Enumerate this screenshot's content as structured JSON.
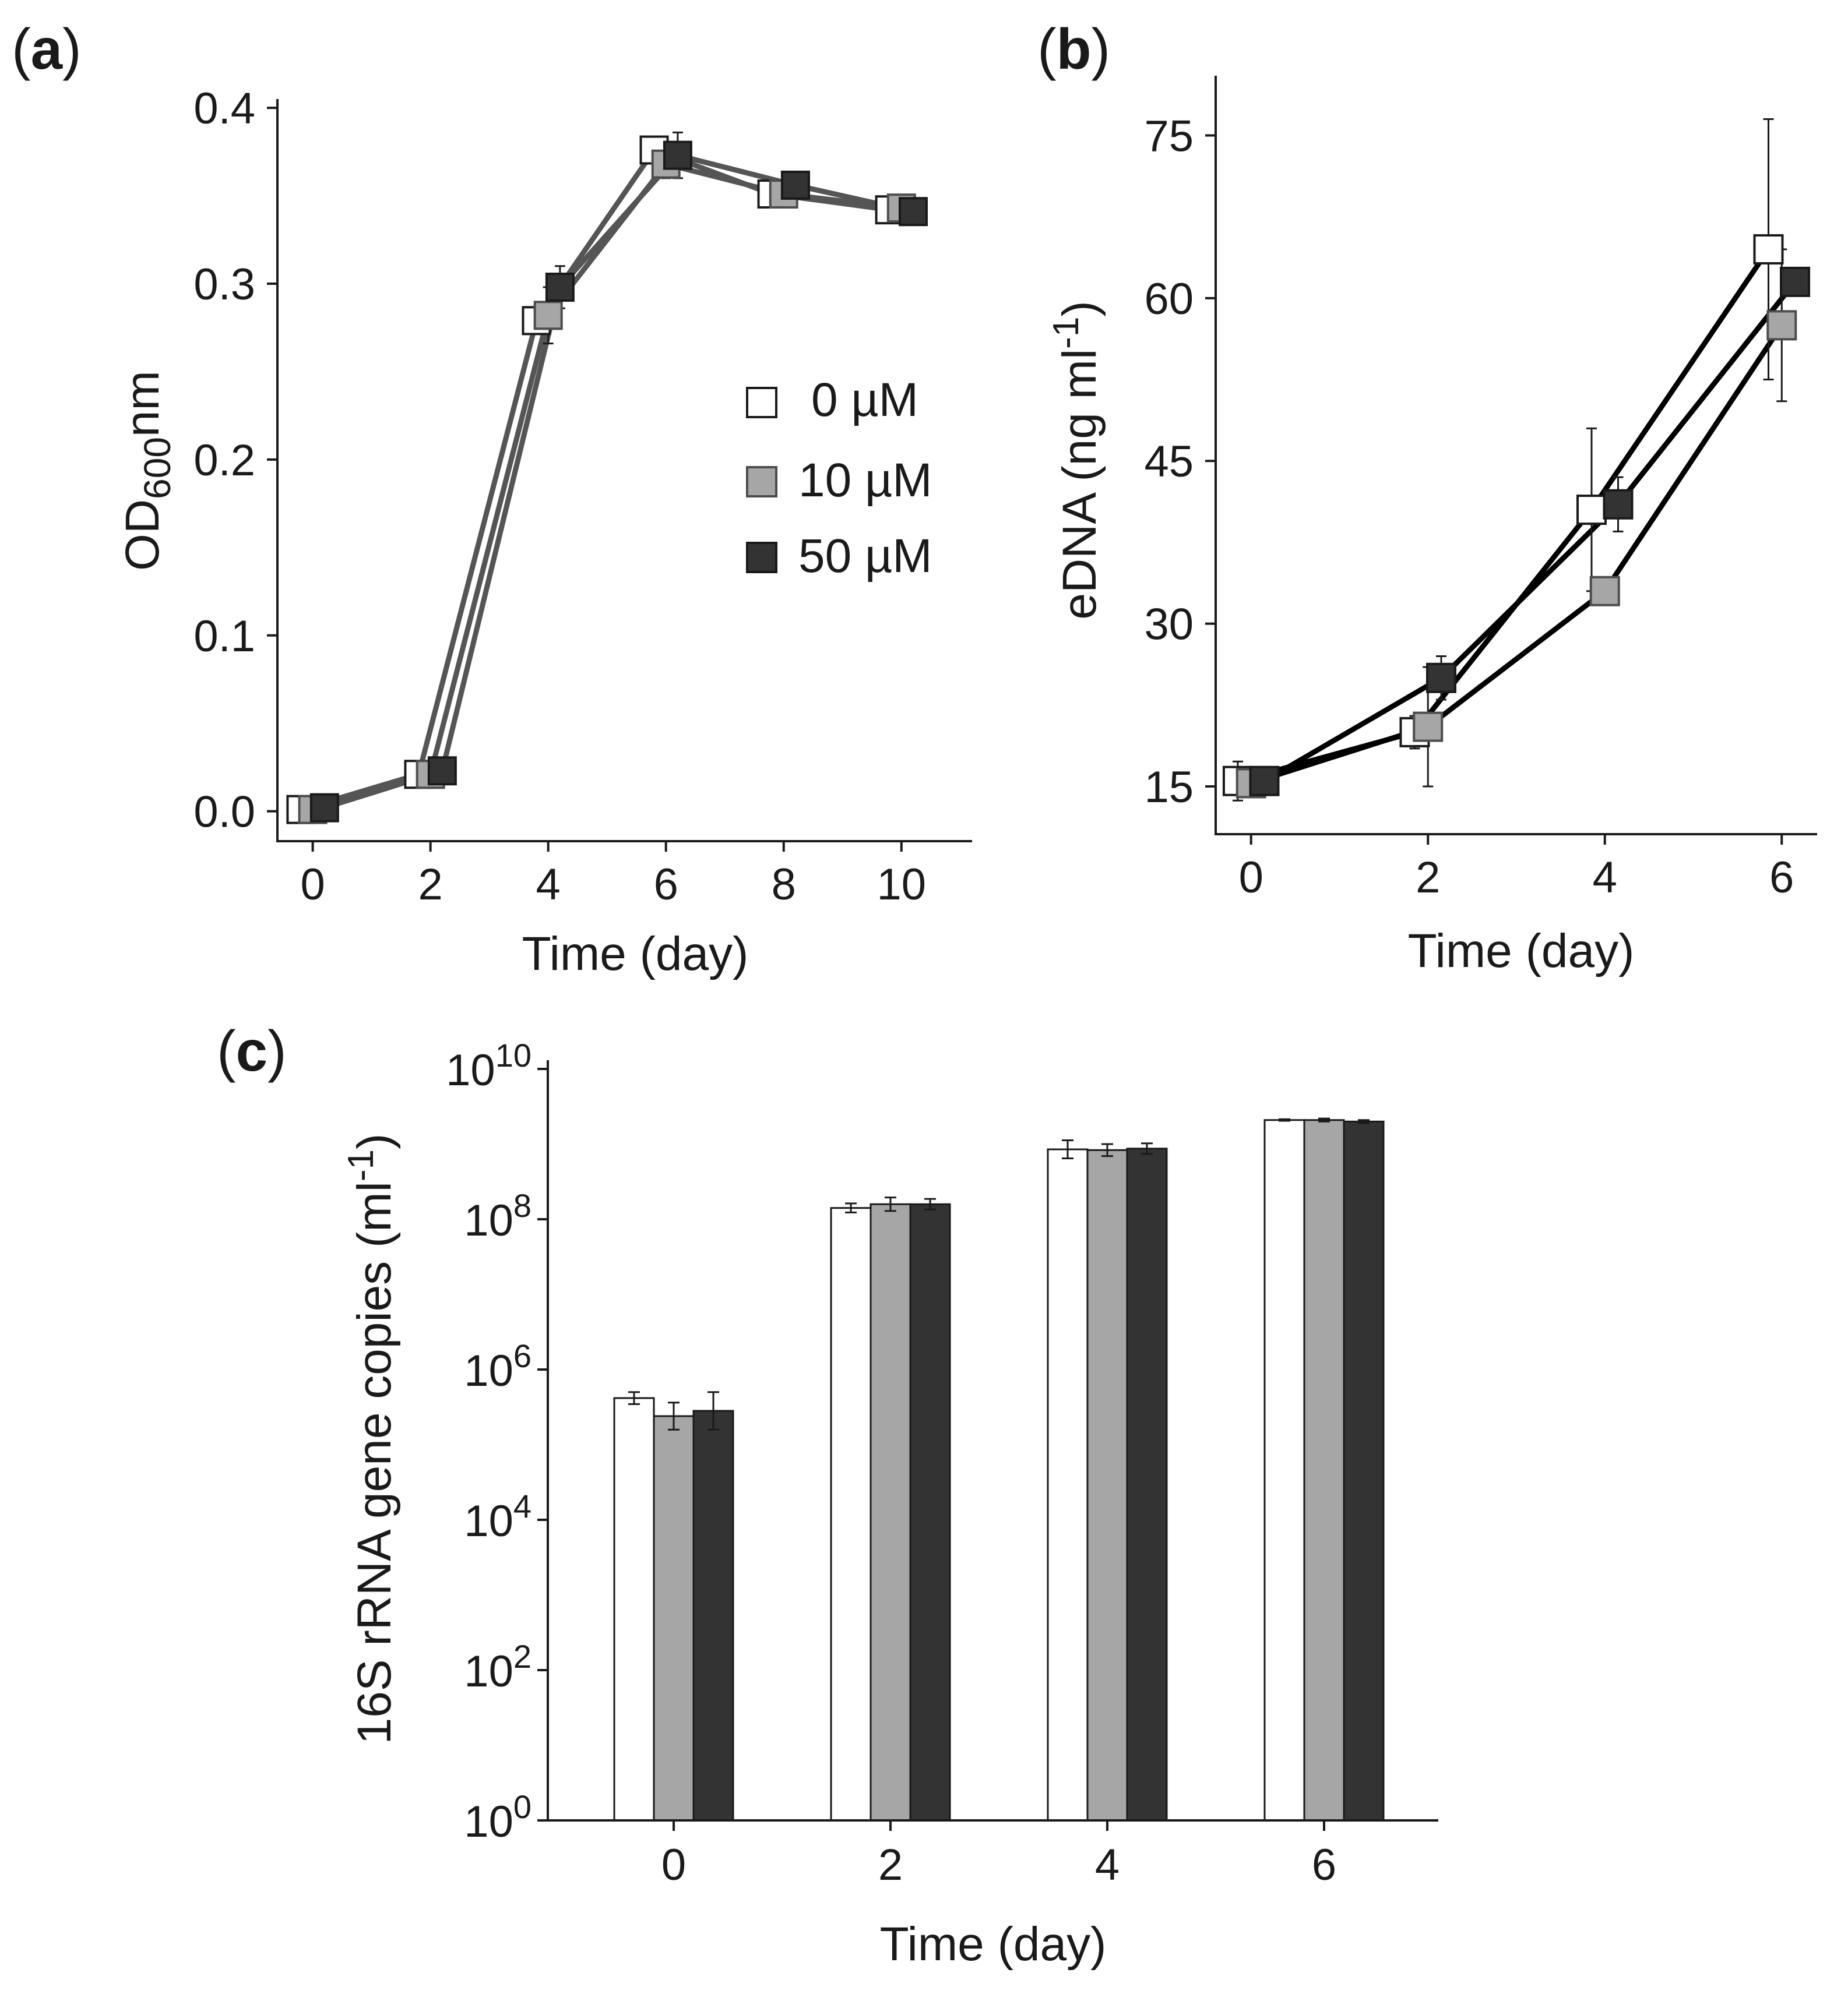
{
  "colors": {
    "series_fill": [
      "#ffffff",
      "#a6a6a6",
      "#333333"
    ],
    "series_stroke": [
      "#1a1a1a",
      "#4d4d4d",
      "#1a1a1a"
    ],
    "line_a": "#555555",
    "line_b": "#000000"
  },
  "legend": {
    "entries": [
      "0 µM",
      "10 µM",
      "50 µM"
    ]
  },
  "chart_data": [
    {
      "id": "a",
      "label": "a",
      "type": "line",
      "title": "",
      "xlabel": "Time (day)",
      "ylabel_main": "OD",
      "ylabel_sub": "600",
      "ylabel_tail": "nm",
      "xlim": [
        -0.6,
        11.2
      ],
      "ylim": [
        -0.017,
        0.405
      ],
      "xticks": [
        0,
        2,
        4,
        6,
        8,
        10
      ],
      "xtick_labels": [
        "0",
        "2",
        "4",
        "6",
        "8",
        "10"
      ],
      "yticks": [
        0,
        0.1,
        0.2,
        0.3,
        0.4
      ],
      "ytick_labels": [
        "0.0",
        "0.1",
        "0.2",
        "0.3",
        "0.4"
      ],
      "dodge": [
        -0.2,
        0,
        0.2
      ],
      "series": [
        {
          "name": "0 µM",
          "x": [
            0,
            2,
            4,
            6,
            8,
            10
          ],
          "values": [
            0.001,
            0.021,
            0.279,
            0.376,
            0.351,
            0.342
          ],
          "errors": [
            0.001,
            0.002,
            0.003,
            0.003,
            0.004,
            0.004
          ]
        },
        {
          "name": "10 µM",
          "x": [
            0,
            2,
            4,
            6,
            8,
            10
          ],
          "values": [
            0.001,
            0.021,
            0.282,
            0.368,
            0.351,
            0.343
          ],
          "errors": [
            0.001,
            0.002,
            0.016,
            0.008,
            0.004,
            0.005
          ]
        },
        {
          "name": "50 µM",
          "x": [
            0,
            2,
            4,
            6,
            8,
            10
          ],
          "values": [
            0.002,
            0.023,
            0.298,
            0.373,
            0.356,
            0.341
          ],
          "errors": [
            0.001,
            0.002,
            0.012,
            0.013,
            0.003,
            0.004
          ]
        }
      ]
    },
    {
      "id": "b",
      "label": "b",
      "type": "line",
      "title": "",
      "xlabel": "Time (day)",
      "ylabel_main": "eDNA (ng ml",
      "ylabel_sup": "-1",
      "ylabel_tail": ")",
      "xlim": [
        -0.4,
        6.4
      ],
      "ylim": [
        10.6,
        80.5
      ],
      "xticks": [
        0,
        2,
        4,
        6
      ],
      "xtick_labels": [
        "0",
        "2",
        "4",
        "6"
      ],
      "yticks": [
        15,
        30,
        45,
        60,
        75
      ],
      "ytick_labels": [
        "15",
        "30",
        "45",
        "60",
        "75"
      ],
      "dodge": [
        -0.15,
        0,
        0.15
      ],
      "series": [
        {
          "name": "0 µM",
          "x": [
            0,
            2,
            4,
            6
          ],
          "values": [
            15.5,
            20.0,
            40.5,
            64.5
          ],
          "errors": [
            1.8,
            1.5,
            7.5,
            12.0
          ]
        },
        {
          "name": "10 µM",
          "x": [
            0,
            2,
            4,
            6
          ],
          "values": [
            15.3,
            20.5,
            33.0,
            57.5
          ],
          "errors": [
            1.0,
            5.5,
            0.8,
            7.0
          ]
        },
        {
          "name": "50 µM",
          "x": [
            0,
            2,
            4,
            6
          ],
          "values": [
            15.5,
            25.0,
            41.0,
            61.5
          ],
          "errors": [
            0.5,
            2.0,
            2.5,
            0.3
          ]
        }
      ]
    },
    {
      "id": "c",
      "label": "c",
      "type": "bar",
      "title": "",
      "scale": "log10",
      "xlabel": "Time (day)",
      "ylabel_main": "16S rRNA gene copies (ml",
      "ylabel_sup": "-1",
      "ylabel_tail": ")",
      "ylim_log10": [
        0,
        10
      ],
      "yticks_log10": [
        0,
        2,
        4,
        6,
        8,
        10
      ],
      "ytick_base": "10",
      "ytick_exponents": [
        "0",
        "2",
        "4",
        "6",
        "8",
        "10"
      ],
      "categories": [
        "0",
        "2",
        "4",
        "6"
      ],
      "series": [
        {
          "name": "0 µM",
          "log10_values": [
            5.62,
            8.15,
            8.93,
            9.32
          ],
          "log10_errors": [
            0.08,
            0.06,
            0.12,
            0.01
          ]
        },
        {
          "name": "10 µM",
          "log10_values": [
            5.38,
            8.2,
            8.92,
            9.32
          ],
          "log10_errors": [
            0.18,
            0.09,
            0.08,
            0.02
          ]
        },
        {
          "name": "50 µM",
          "log10_values": [
            5.45,
            8.2,
            8.94,
            9.3
          ],
          "log10_errors": [
            0.25,
            0.07,
            0.07,
            0.02
          ]
        }
      ]
    }
  ]
}
